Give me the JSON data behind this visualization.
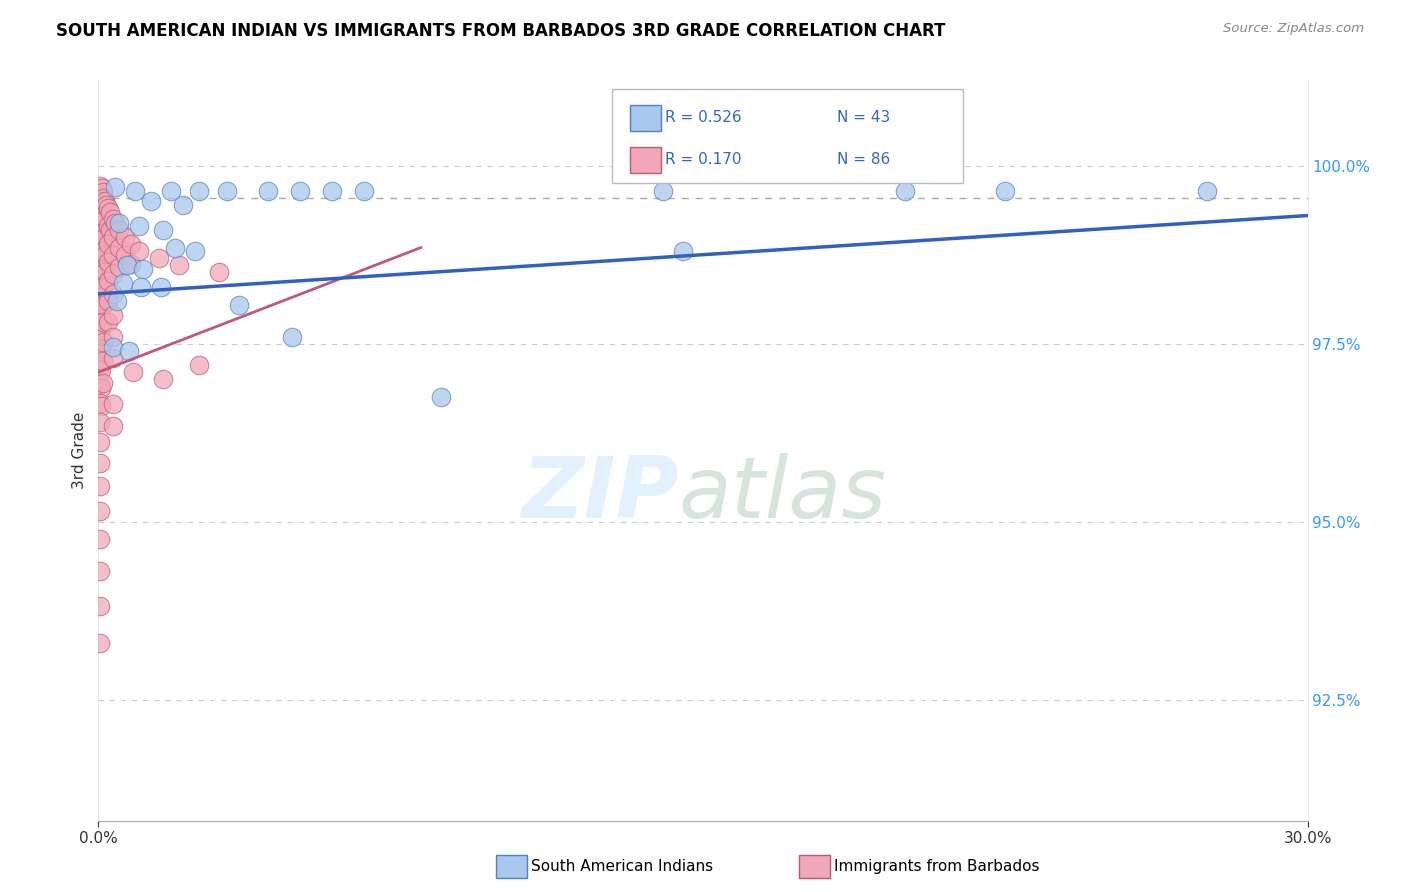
{
  "title": "SOUTH AMERICAN INDIAN VS IMMIGRANTS FROM BARBADOS 3RD GRADE CORRELATION CHART",
  "source": "Source: ZipAtlas.com",
  "ylabel": "3rd Grade",
  "y_ticks": [
    92.5,
    95.0,
    97.5,
    100.0
  ],
  "y_tick_labels": [
    "92.5%",
    "95.0%",
    "97.5%",
    "100.0%"
  ],
  "xlim": [
    0.0,
    30.0
  ],
  "ylim": [
    90.8,
    101.2
  ],
  "legend_r1": "R = 0.526",
  "legend_n1": "N = 43",
  "legend_r2": "R = 0.170",
  "legend_n2": "N = 86",
  "blue_fill": "#A8C8EE",
  "blue_edge": "#5080C0",
  "pink_fill": "#F0A8B8",
  "pink_edge": "#C05870",
  "blue_line_color": "#3060C0",
  "pink_line_color": "#C05878",
  "dashed_line_color": "#AAAAAA",
  "grid_color": "#CCCCCC",
  "blue_line": [
    [
      0.0,
      98.2
    ],
    [
      30.0,
      99.3
    ]
  ],
  "pink_line": [
    [
      0.0,
      97.1
    ],
    [
      8.0,
      98.85
    ]
  ],
  "dashed_line": [
    [
      0.0,
      99.55
    ],
    [
      30.0,
      99.55
    ]
  ],
  "blue_dots": [
    [
      0.4,
      99.7
    ],
    [
      0.9,
      99.65
    ],
    [
      1.8,
      99.65
    ],
    [
      2.5,
      99.65
    ],
    [
      3.2,
      99.65
    ],
    [
      4.2,
      99.65
    ],
    [
      5.0,
      99.65
    ],
    [
      5.8,
      99.65
    ],
    [
      6.6,
      99.65
    ],
    [
      1.3,
      99.5
    ],
    [
      2.1,
      99.45
    ],
    [
      0.5,
      99.2
    ],
    [
      1.0,
      99.15
    ],
    [
      1.6,
      99.1
    ],
    [
      1.9,
      98.85
    ],
    [
      2.4,
      98.8
    ],
    [
      0.7,
      98.6
    ],
    [
      1.1,
      98.55
    ],
    [
      0.6,
      98.35
    ],
    [
      1.05,
      98.3
    ],
    [
      1.55,
      98.3
    ],
    [
      0.45,
      98.1
    ],
    [
      3.5,
      98.05
    ],
    [
      4.8,
      97.6
    ],
    [
      0.35,
      97.45
    ],
    [
      0.75,
      97.4
    ],
    [
      14.0,
      99.65
    ],
    [
      20.0,
      99.65
    ],
    [
      22.5,
      99.65
    ],
    [
      27.5,
      99.65
    ],
    [
      14.5,
      98.8
    ],
    [
      8.5,
      96.75
    ]
  ],
  "pink_dots": [
    [
      0.05,
      99.72
    ],
    [
      0.08,
      99.68
    ],
    [
      0.12,
      99.63
    ],
    [
      0.05,
      99.5
    ],
    [
      0.08,
      99.45
    ],
    [
      0.11,
      99.4
    ],
    [
      0.05,
      99.28
    ],
    [
      0.07,
      99.22
    ],
    [
      0.1,
      99.17
    ],
    [
      0.04,
      99.05
    ],
    [
      0.07,
      99.0
    ],
    [
      0.1,
      98.95
    ],
    [
      0.04,
      98.82
    ],
    [
      0.07,
      98.77
    ],
    [
      0.1,
      98.72
    ],
    [
      0.04,
      98.6
    ],
    [
      0.07,
      98.55
    ],
    [
      0.1,
      98.5
    ],
    [
      0.04,
      98.38
    ],
    [
      0.07,
      98.32
    ],
    [
      0.1,
      98.27
    ],
    [
      0.04,
      98.15
    ],
    [
      0.07,
      98.1
    ],
    [
      0.1,
      98.05
    ],
    [
      0.04,
      97.9
    ],
    [
      0.07,
      97.85
    ],
    [
      0.04,
      97.65
    ],
    [
      0.07,
      97.6
    ],
    [
      0.04,
      97.42
    ],
    [
      0.07,
      97.37
    ],
    [
      0.04,
      97.18
    ],
    [
      0.07,
      97.13
    ],
    [
      0.04,
      96.93
    ],
    [
      0.07,
      96.88
    ],
    [
      0.04,
      96.67
    ],
    [
      0.07,
      96.62
    ],
    [
      0.04,
      96.4
    ],
    [
      0.04,
      96.12
    ],
    [
      0.04,
      95.82
    ],
    [
      0.04,
      95.5
    ],
    [
      0.04,
      95.15
    ],
    [
      0.04,
      94.75
    ],
    [
      0.04,
      94.3
    ],
    [
      0.04,
      93.82
    ],
    [
      0.12,
      99.55
    ],
    [
      0.16,
      99.5
    ],
    [
      0.2,
      99.45
    ],
    [
      0.12,
      99.3
    ],
    [
      0.17,
      99.25
    ],
    [
      0.12,
      99.05
    ],
    [
      0.17,
      99.0
    ],
    [
      0.12,
      98.8
    ],
    [
      0.17,
      98.75
    ],
    [
      0.12,
      98.55
    ],
    [
      0.17,
      98.5
    ],
    [
      0.12,
      98.3
    ],
    [
      0.12,
      98.05
    ],
    [
      0.12,
      97.8
    ],
    [
      0.12,
      97.52
    ],
    [
      0.12,
      97.25
    ],
    [
      0.12,
      96.95
    ],
    [
      0.23,
      99.4
    ],
    [
      0.28,
      99.35
    ],
    [
      0.23,
      99.15
    ],
    [
      0.28,
      99.1
    ],
    [
      0.23,
      98.9
    ],
    [
      0.23,
      98.65
    ],
    [
      0.23,
      98.38
    ],
    [
      0.23,
      98.1
    ],
    [
      0.23,
      97.8
    ],
    [
      0.35,
      99.25
    ],
    [
      0.42,
      99.2
    ],
    [
      0.35,
      99.0
    ],
    [
      0.35,
      98.75
    ],
    [
      0.35,
      98.48
    ],
    [
      0.35,
      98.2
    ],
    [
      0.35,
      97.9
    ],
    [
      0.5,
      99.1
    ],
    [
      0.5,
      98.85
    ],
    [
      0.5,
      98.58
    ],
    [
      0.65,
      99.0
    ],
    [
      0.65,
      98.75
    ],
    [
      0.8,
      98.9
    ],
    [
      0.8,
      98.62
    ],
    [
      1.0,
      98.8
    ],
    [
      1.5,
      98.7
    ],
    [
      2.0,
      98.6
    ],
    [
      3.0,
      98.5
    ],
    [
      0.35,
      97.6
    ],
    [
      0.35,
      97.3
    ],
    [
      0.85,
      97.1
    ],
    [
      1.6,
      97.0
    ],
    [
      0.35,
      96.65
    ],
    [
      0.35,
      96.35
    ],
    [
      2.5,
      97.2
    ],
    [
      0.04,
      93.3
    ]
  ]
}
